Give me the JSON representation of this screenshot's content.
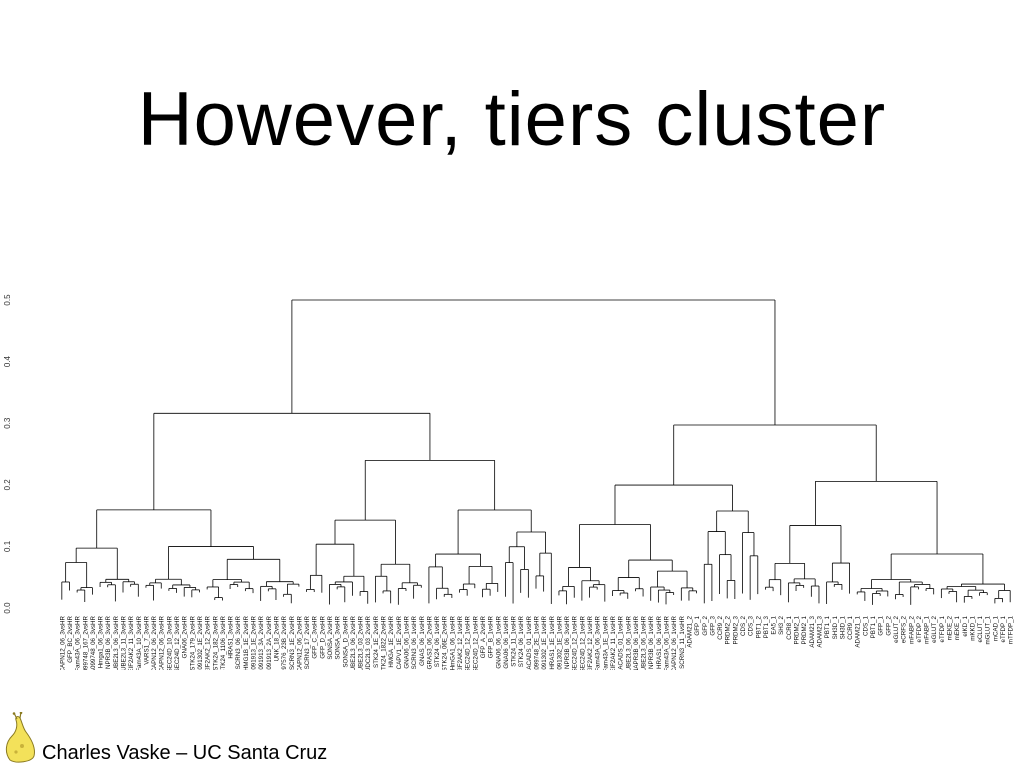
{
  "slide": {
    "title": "However, tiers cluster",
    "footer": "Charles Vaske – UC Santa Cruz"
  },
  "icons": {
    "logo": "banana-slug-icon"
  },
  "chart_data": {
    "type": "dendrogram",
    "ylim": [
      0,
      0.5
    ],
    "yticks": [
      "0.0",
      "0.1",
      "0.2",
      "0.3",
      "0.4",
      "0.5"
    ],
    "leaves": [
      "CAPN12_06_3vsHR",
      "GFP_BC_2vsHR",
      "Fam43A_06_3vsHR",
      "AA099748_167_2vsHR",
      "AA099748_06_3vsHR",
      "Hmga1_06_3vsHR",
      "NPR3B_06_3vsHR",
      "UBE2L3_06_3vsHR",
      "UBE2L3_11_3vsHR",
      "EIF2AK2_11_3vsHR",
      "Fam43A_10_3vsHR",
      "VARS1_7_3vsHR",
      "CAPN12_06_2vsHR",
      "CAPN12_06_3vsHR",
      "SEC24D_10_3vsHR",
      "SEC24D_12_3vsHR",
      "GNA06_2vsHR",
      "STK24_179_2vsHR",
      "AK091302_1E_2vsHR",
      "EIF2AK2_12_2vsHR",
      "STK24_182_3vsHR",
      "STK24_1106_3vsHR",
      "HRAS1_3vsHR",
      "SCRN3_06_3vsHR",
      "HMG1B_1E_2vsHR",
      "AK091913_1E_2vsHR",
      "AK091913_3A_2vsHR",
      "AK091913_2A_2vsHR",
      "UNK_18_2vsHR",
      "AK097576_23B_2vsHR",
      "SCRN3_1E_2vsHR",
      "CAPN12_06_2vsHR",
      "SCRN3_17_2vsHR",
      "GFP_C_3vsHR",
      "GFP_D_2vsHR",
      "SONSA_2vsHR",
      "SONSA_3vsHR",
      "SONSA_D_3vsHR",
      "UBE2L3_06_2vsHR",
      "UBE2L3_03_2vsHR",
      "UDC2L3_03_2vsHR",
      "STK24_1E_2vsHR",
      "STK24_1822_2vsHR",
      "HMGA_1E_2vsHR",
      "CAPV1_1E_2vsHR",
      "GNA06_06_1vsHR",
      "SCRN3_06_1vsHR",
      "GNAS_06_1vsHR",
      "GRAS3_06_2vsHR",
      "STK24_06_1vsHR",
      "STK24_06E_2vsHR",
      "HmGA1_06_1vsHR",
      "EIF2AK2_12_1vsHR",
      "SEC24D_12_1vsHR",
      "SEC24D_12_1vsHR",
      "GFP_A_2vsHR",
      "GFP_B_1vsHR",
      "GNA06_06_1vsHR",
      "GNA06_06_1vsHR",
      "STK24_11_1vsHR",
      "STK24_06_1vsHR",
      "ACADS_01_1vsHR",
      "AA099748_2E_1vsHR",
      "AK091302_1E_1vsHR",
      "HRAS1_1E_1vsHR",
      "AK091302_1E_1vsHR",
      "NPR3B_06_3vsHR",
      "SEC24D_12_1vsHR",
      "SEC24D_12_1vsHR",
      "EIF2AK2_12_1vsHR",
      "Fam43A_06_3vsHR",
      "Fam43A_1E_1vsHR",
      "EIF2AK2_11_1vsHR",
      "ACADS_01_1vsHR",
      "UBE2L3_06_1vsHR",
      "NAPR3B_06_1vsHR",
      "UBE2L3_06_1vsHR",
      "NPR3B_06_1vsHR",
      "HRAS1_06_1vsHR",
      "Fam43A_06_1vsHR",
      "CAPN12_06_1vsHR",
      "SCRN3_11_1vsHR",
      "ADAM21_2",
      "GFP_1",
      "GFP_2",
      "GFP_3",
      "CCR9_2",
      "PRDM2_2",
      "PRDM2_3",
      "CDS_2",
      "CDS_3",
      "PBT1_2",
      "PBT1_3",
      "EA5_1",
      "SH3_2",
      "CCR8_1",
      "PRDM2_1",
      "PRDM2_1",
      "ADAM21_3",
      "ADAM21_3",
      "PBT1_1",
      "SH3D_1",
      "SH3D_1",
      "CCR9_1",
      "ADAM21_1",
      "CDS_1",
      "PBT1_1",
      "GFP_1",
      "GFP_2",
      "eGLUT_2",
      "eCRFS_2",
      "mFABP_2",
      "eTFDP_2",
      "mFABP_1",
      "eGLUT_2",
      "eTFDP_1",
      "mEKE_2",
      "mEKE_1",
      "eIKD_1",
      "mKKD_1",
      "eCLUT_1",
      "mGLUT_1",
      "mCAD_1",
      "eTFDP_1",
      "mTFDP_1"
    ]
  }
}
